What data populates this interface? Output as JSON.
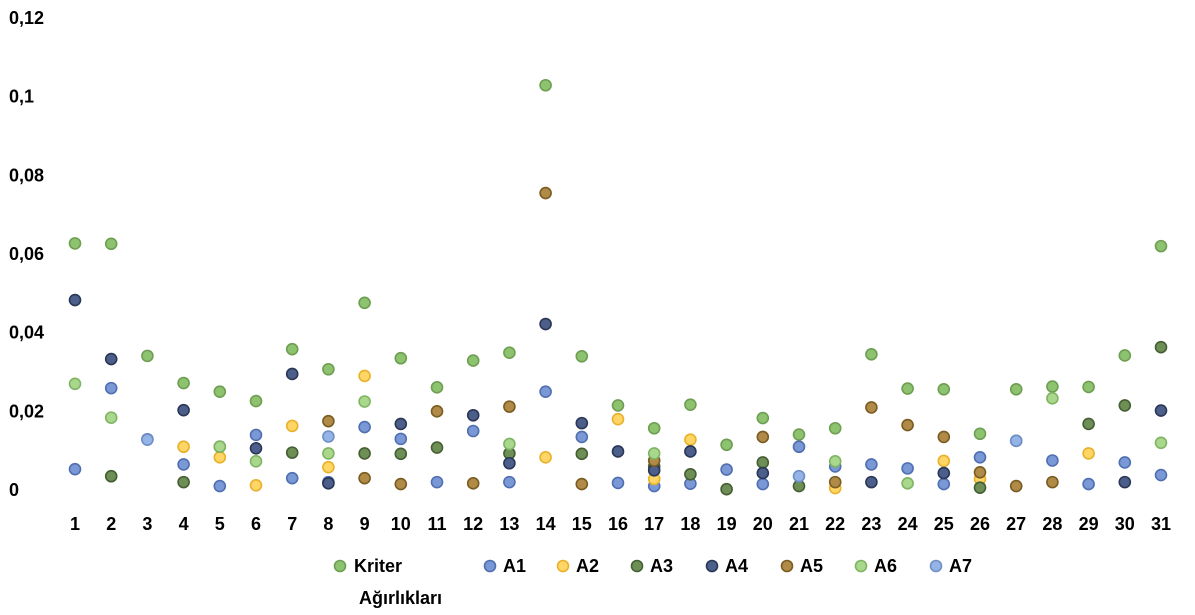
{
  "chart_data": {
    "type": "scatter",
    "x": [
      1,
      2,
      3,
      4,
      5,
      6,
      7,
      8,
      9,
      10,
      11,
      12,
      13,
      14,
      15,
      16,
      17,
      18,
      19,
      20,
      21,
      22,
      23,
      24,
      25,
      26,
      27,
      28,
      29,
      30,
      31
    ],
    "ylim": [
      0,
      0.12
    ],
    "yticks": [
      "0",
      "0,02",
      "0,04",
      "0,06",
      "0,08",
      "0,1",
      "0,12"
    ],
    "xticks": [
      "1",
      "2",
      "3",
      "4",
      "5",
      "6",
      "7",
      "8",
      "9",
      "10",
      "11",
      "12",
      "13",
      "14",
      "15",
      "16",
      "17",
      "18",
      "19",
      "20",
      "21",
      "22",
      "23",
      "24",
      "25",
      "26",
      "27",
      "28",
      "29",
      "30",
      "31"
    ],
    "grid": false,
    "legend_position": "bottom",
    "series": [
      {
        "name": "Kriter Ağırlıkları",
        "color": "#8DC26F",
        "stroke": "#6E9E52",
        "values": [
          0.0627,
          0.0626,
          0.0341,
          0.0272,
          0.025,
          0.0226,
          0.0358,
          0.0307,
          0.0476,
          0.0335,
          0.0261,
          0.0329,
          0.0349,
          0.1029,
          0.034,
          0.0215,
          0.0157,
          0.0217,
          0.0115,
          0.0183,
          0.0141,
          0.0157,
          0.0345,
          0.0258,
          0.0256,
          0.0143,
          0.0256,
          0.0263,
          0.0262,
          0.0342,
          0.062
        ]
      },
      {
        "name": "A1",
        "color": "#7B98D6",
        "stroke": "#4F6FB0",
        "values": [
          0.0053,
          0.0259,
          0.0129,
          0.0065,
          0.001,
          0.014,
          0.003,
          0.002,
          0.016,
          0.013,
          0.002,
          0.015,
          0.002,
          0.025,
          0.0135,
          0.0018,
          0.001,
          0.0016,
          0.0052,
          0.0015,
          0.011,
          0.006,
          0.0065,
          0.0055,
          0.0015,
          0.0083,
          0.0125,
          0.0075,
          0.0015,
          0.007,
          0.0038
        ]
      },
      {
        "name": "A2",
        "color": "#FFD666",
        "stroke": "#E8B12A",
        "values": [
          null,
          null,
          null,
          0.011,
          0.0083,
          0.0012,
          0.0163,
          0.0058,
          0.029,
          null,
          null,
          null,
          null,
          0.0083,
          null,
          0.018,
          0.0028,
          0.0128,
          null,
          null,
          null,
          0.0005,
          null,
          null,
          0.0074,
          0.0028,
          null,
          null,
          0.0093,
          null,
          null
        ]
      },
      {
        "name": "A3",
        "color": "#6D8F55",
        "stroke": "#455E33",
        "values": [
          null,
          0.0035,
          null,
          0.002,
          0.011,
          null,
          0.0095,
          null,
          0.0093,
          0.0092,
          0.0108,
          null,
          0.0093,
          null,
          0.0092,
          null,
          0.006,
          0.004,
          0.0002,
          0.007,
          0.001,
          null,
          null,
          null,
          null,
          0.0006,
          null,
          null,
          0.0168,
          0.0215,
          0.0363
        ]
      },
      {
        "name": "A4",
        "color": "#4C5F8A",
        "stroke": "#2A3656",
        "values": [
          0.0483,
          0.0333,
          null,
          0.0203,
          null,
          0.0106,
          0.0295,
          0.0017,
          null,
          0.0168,
          null,
          0.019,
          0.0068,
          0.0422,
          0.017,
          0.0098,
          0.005,
          0.0098,
          null,
          0.0043,
          null,
          null,
          0.002,
          null,
          0.0043,
          null,
          null,
          null,
          null,
          0.002,
          0.0202
        ]
      },
      {
        "name": "A5",
        "color": "#B08A47",
        "stroke": "#7A5C22",
        "values": [
          null,
          null,
          null,
          null,
          null,
          null,
          null,
          0.0175,
          0.003,
          0.0015,
          0.02,
          0.0017,
          0.0212,
          0.0755,
          0.0015,
          null,
          0.0075,
          null,
          null,
          0.0135,
          null,
          0.002,
          0.021,
          0.0165,
          0.0135,
          0.0045,
          0.001,
          0.002,
          null,
          null,
          null
        ]
      },
      {
        "name": "A6",
        "color": "#A9D88C",
        "stroke": "#7FB463",
        "values": [
          0.027,
          0.0184,
          null,
          null,
          0.011,
          0.0073,
          null,
          0.0093,
          0.0225,
          null,
          null,
          null,
          0.0117,
          null,
          null,
          null,
          0.0093,
          null,
          null,
          null,
          null,
          0.0073,
          null,
          0.0017,
          null,
          null,
          null,
          0.0233,
          null,
          null,
          0.012
        ]
      },
      {
        "name": "A7",
        "color": "#94B3E6",
        "stroke": "#6F8FC6",
        "values": [
          null,
          null,
          0.0128,
          null,
          null,
          null,
          null,
          0.0136,
          null,
          null,
          null,
          null,
          null,
          null,
          null,
          null,
          null,
          null,
          null,
          null,
          0.0035,
          null,
          null,
          null,
          null,
          null,
          0.0125,
          null,
          null,
          null,
          null
        ]
      }
    ],
    "legend_labels": [
      "Kriter",
      "Ağırlıkları",
      "A1",
      "A2",
      "A3",
      "A4",
      "A5",
      "A6",
      "A7"
    ]
  }
}
